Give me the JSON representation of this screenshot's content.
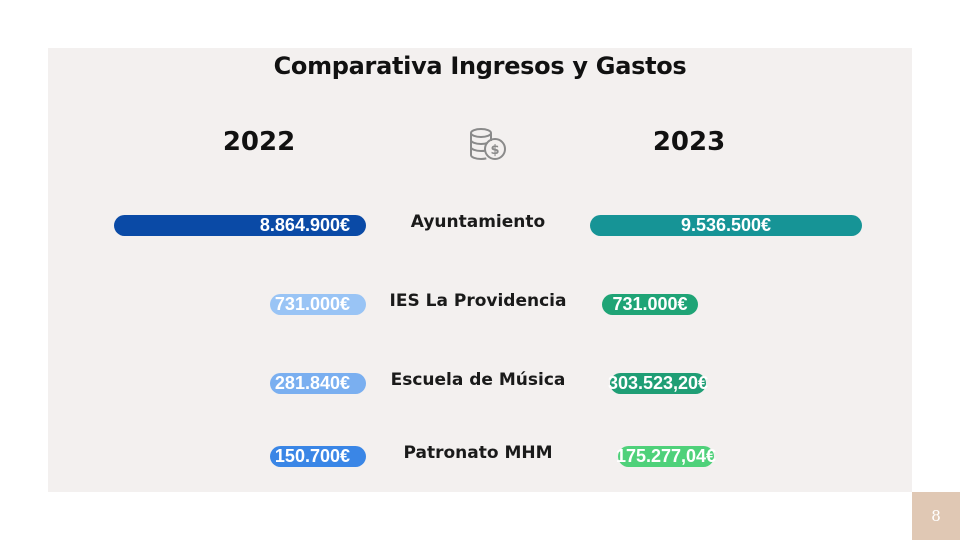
{
  "chart_data": {
    "type": "bar",
    "title": "Comparativa Ingresos y Gastos",
    "categories": [
      "Ayuntamiento",
      "IES La Providencia",
      "Escuela de Música",
      "Patronato MHM"
    ],
    "series": [
      {
        "name": "2022",
        "values": [
          8864900,
          731000,
          281840,
          150700
        ],
        "labels": [
          "8.864.900€",
          "731.000€",
          "281.840€",
          "150.700€"
        ],
        "colors": [
          "#0a4aa6",
          "#99c4f5",
          "#7aaff0",
          "#3a86e6"
        ]
      },
      {
        "name": "2023",
        "values": [
          9536500,
          731000,
          303523.2,
          175277.04
        ],
        "labels": [
          "9.536.500€",
          "731.000€",
          "303.523,20€",
          "175.277,04€"
        ],
        "colors": [
          "#169496",
          "#1fa476",
          "#1f9e75",
          "#4fd17a"
        ]
      }
    ]
  },
  "page_number": "8",
  "icon": "coins-dollar-icon"
}
